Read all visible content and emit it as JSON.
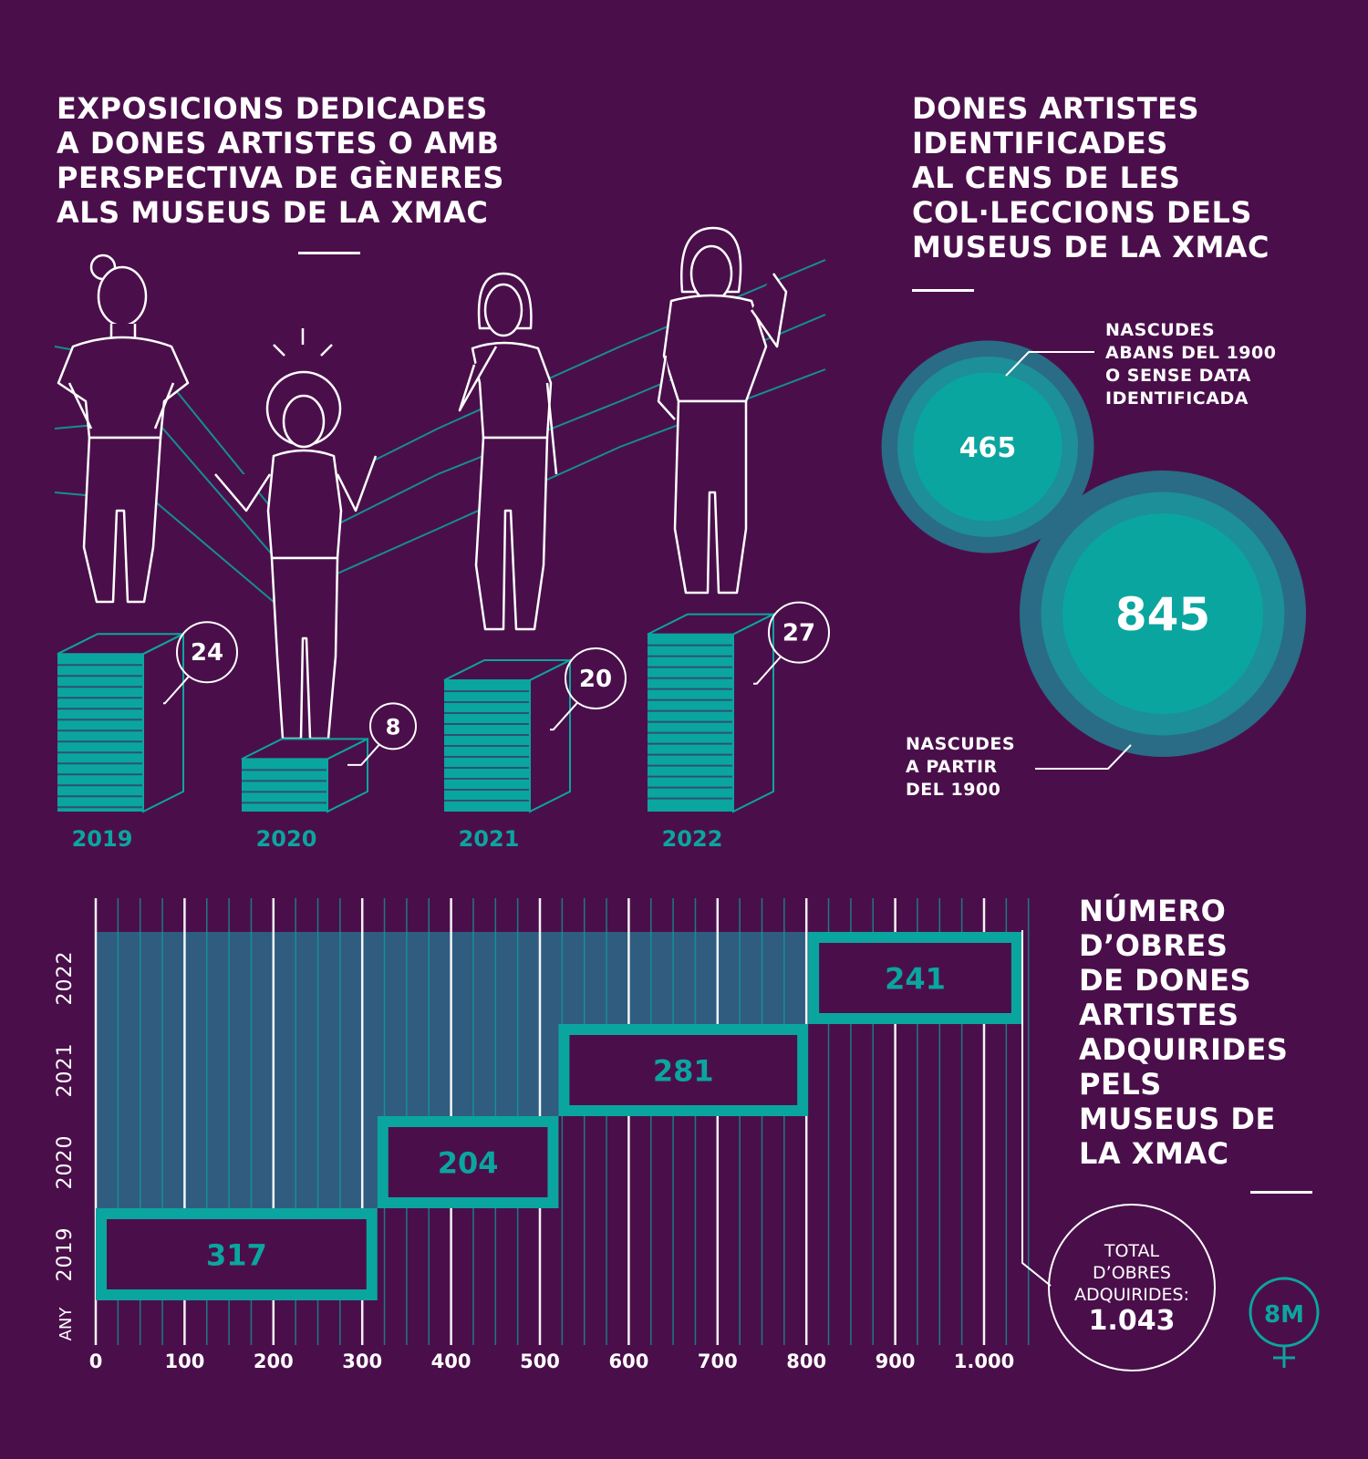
{
  "colors": {
    "background": "#4a0f4a",
    "teal": "#0ba5a0",
    "teal_dark": "#2a6b86",
    "teal_band": "#2c6585",
    "white": "#ffffff"
  },
  "exhibitions": {
    "title_lines": [
      "EXPOSICIONS DEDICADES",
      "A DONES ARTISTES O AMB",
      "PERSPECTIVA DE GÈNERES",
      "ALS MUSEUS DE LA XMAC"
    ]
  },
  "census": {
    "title_lines": [
      "DONES ARTISTES",
      "IDENTIFICADES",
      "AL CENS DE LES",
      "COL·LECCIONS DELS",
      "MUSEUS DE LA XMAC"
    ],
    "before_1900_lines": [
      "NASCUDES",
      "ABANS DEL 1900",
      "O SENSE DATA",
      "IDENTIFICADA"
    ],
    "after_1900_lines": [
      "NASCUDES",
      "A PARTIR",
      "DEL 1900"
    ]
  },
  "acquisitions": {
    "title_lines": [
      "NÚMERO",
      "D’OBRES",
      "DE DONES",
      "ARTISTES",
      "ADQUIRIDES",
      "PELS",
      "MUSEUS DE",
      "LA XMAC"
    ],
    "axis_label": "ANY",
    "total_lines": [
      "TOTAL",
      "D’OBRES",
      "ADQUIRIDES:"
    ],
    "total_value": "1.043"
  },
  "badge": {
    "text": "8M",
    "icon": "female-symbol-icon"
  },
  "chart_data": [
    {
      "type": "bar",
      "categories": [
        "2019",
        "2020",
        "2021",
        "2022"
      ],
      "values": [
        24,
        8,
        20,
        27
      ],
      "value_labels": [
        "24",
        "8",
        "20",
        "27"
      ]
    },
    {
      "type": "pie",
      "categories": [
        "NASCUDES ABANS DEL 1900 O SENSE DATA IDENTIFICADA",
        "NASCUDES A PARTIR DEL 1900"
      ],
      "values": [
        465,
        845
      ],
      "value_labels": [
        "465",
        "845"
      ]
    },
    {
      "type": "bar",
      "orientation": "horizontal-stacked-waterfall",
      "categories": [
        "2019",
        "2020",
        "2021",
        "2022"
      ],
      "values": [
        317,
        204,
        281,
        241
      ],
      "value_labels": [
        "317",
        "204",
        "281",
        "241"
      ],
      "xlim": [
        0,
        1050
      ],
      "xticks": [
        0,
        100,
        200,
        300,
        400,
        500,
        600,
        700,
        800,
        900,
        1000
      ],
      "xtick_labels": [
        "0",
        "100",
        "200",
        "300",
        "400",
        "500",
        "600",
        "700",
        "800",
        "900",
        "1.000"
      ]
    }
  ]
}
